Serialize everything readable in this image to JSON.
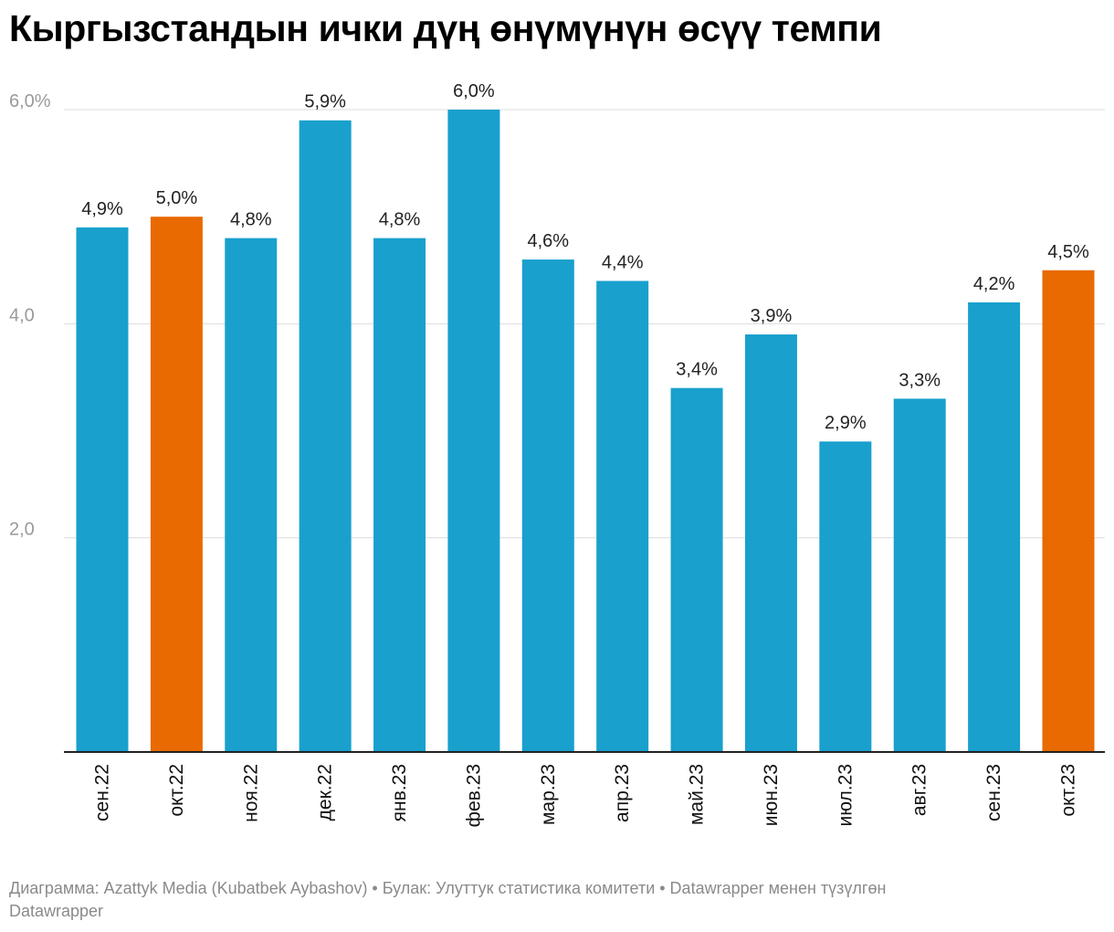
{
  "chart_data": {
    "type": "bar",
    "title": "Кыргызстандын ички дүң өнүмүнүн өсүү темпи",
    "categories": [
      "сен.22",
      "окт.22",
      "ноя.22",
      "дек.22",
      "янв.23",
      "фев.23",
      "мар.23",
      "апр.23",
      "май.23",
      "июн.23",
      "июл.23",
      "авг.23",
      "сен.23",
      "окт.23"
    ],
    "values": [
      4.9,
      5.0,
      4.8,
      5.9,
      4.8,
      6.0,
      4.6,
      4.4,
      3.4,
      3.9,
      2.9,
      3.3,
      4.2,
      4.5
    ],
    "value_labels": [
      "4,9%",
      "5,0%",
      "4,8%",
      "5,9%",
      "4,8%",
      "6,0%",
      "4,6%",
      "4,4%",
      "3,4%",
      "3,9%",
      "2,9%",
      "3,3%",
      "4,2%",
      "4,5%"
    ],
    "highlighted": [
      false,
      true,
      false,
      false,
      false,
      false,
      false,
      false,
      false,
      false,
      false,
      false,
      false,
      true
    ],
    "ylim": [
      0,
      6
    ],
    "yticks": [
      2,
      4,
      6
    ],
    "ytick_labels": [
      "2,0",
      "4,0",
      "6,0%"
    ],
    "colors": {
      "bar": "#19a0cd",
      "highlight": "#e86a00",
      "grid": "#dddddd",
      "axis": "#222222"
    },
    "xlabel": "",
    "ylabel": ""
  },
  "footer": {
    "line1": "Диаграмма: Azattyk Media (Kubatbek Aybashov) • Булак: Улуттук статистика комитети • Datawrapper менен түзүлгөн",
    "line2": "Datawrapper"
  }
}
